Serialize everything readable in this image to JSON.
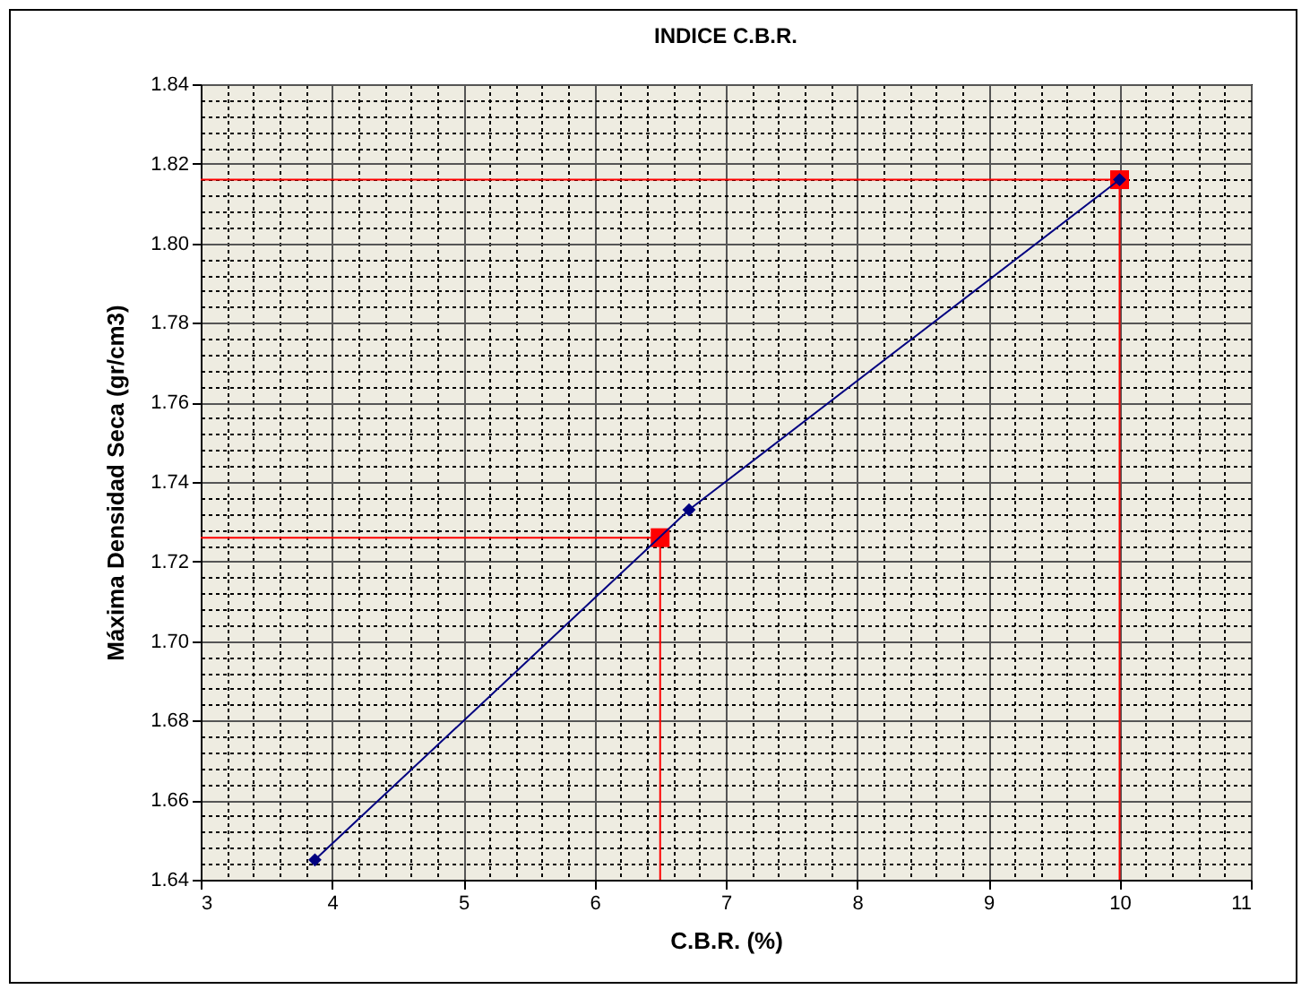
{
  "chart_data": {
    "type": "line",
    "title": "INDICE C.B.R.",
    "xlabel": "C.B.R. (%)",
    "ylabel": "Máxima Densidad Seca (gr/cm3)",
    "xlim": [
      3,
      11
    ],
    "xticks": [
      3,
      4,
      5,
      6,
      7,
      8,
      9,
      10,
      11
    ],
    "ylim": [
      1.64,
      1.84
    ],
    "yticks": [
      1.64,
      1.66,
      1.68,
      {
        "value": 1.7,
        "label": "1.70"
      },
      1.72,
      1.74,
      1.76,
      1.78,
      {
        "value": 1.8,
        "label": "1.80"
      },
      1.82,
      1.84
    ],
    "grid": true,
    "series": [
      {
        "type": "line",
        "color": "#ff0000",
        "marker": "none",
        "x": [
          3,
          6.5,
          6.5
        ],
        "values": [
          1.726,
          1.726,
          1.64
        ]
      },
      {
        "type": "line",
        "color": "#ff0000",
        "marker": "none",
        "x": [
          3,
          10,
          10
        ],
        "values": [
          1.816,
          1.816,
          1.64
        ]
      },
      {
        "type": "scatter",
        "color": "#ff0000",
        "marker": "square",
        "x": [
          6.5,
          10
        ],
        "values": [
          1.726,
          1.816
        ]
      },
      {
        "type": "line",
        "color": "#000080",
        "marker": "diamond",
        "x": [
          3.87,
          6.72,
          10
        ],
        "values": [
          1.645,
          1.733,
          1.816
        ]
      }
    ]
  }
}
